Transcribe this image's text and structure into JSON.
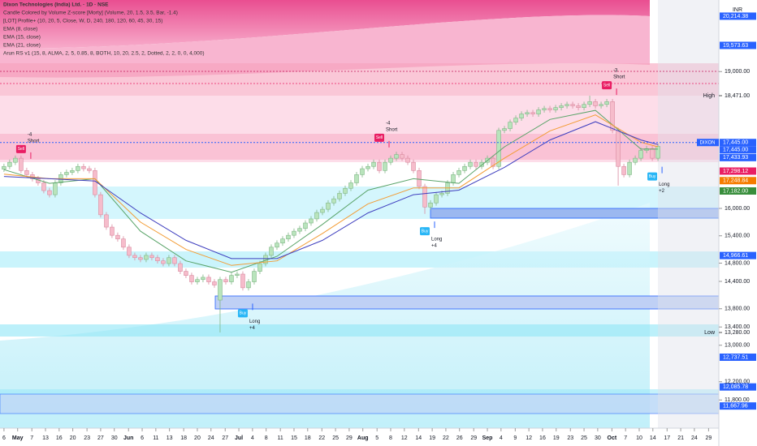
{
  "chart_data": {
    "type": "candlestick",
    "title": "Dixon Technologies (India) Ltd. · 1D · NSE",
    "legend_lines": [
      "Candle Colored by Volume Z-score [Morty] (Volume, 20, 1.5, 3.5, Bar, -1.4)",
      "[LOT] Profile+ (10, 20, 5, Close, W, D, 240, 180, 120, 60, 45, 30, 15)",
      "EMA (8, close)",
      "EMA (15, close)",
      "EMA (21, close)",
      "Arun RS v1 (15, 8, ALMA, 2, 5, 0.85, 8, BOTH, 10, 20, 2.5, 2, Dotted, 2, 2, 0, 0, 4,000)"
    ],
    "currency": "INR",
    "up_color": "#b9e4bc",
    "down_color": "#f6bccb",
    "open": [
      16860,
      16920,
      17010,
      17100,
      16830,
      16740,
      16650,
      16560,
      16390,
      16300,
      16560,
      16740,
      16790,
      16830,
      16920,
      16870,
      16830,
      16300,
      15860,
      15590,
      15410,
      15330,
      15150,
      14970,
      14920,
      14880,
      14970,
      14920,
      14850,
      14790,
      14920,
      14790,
      14620,
      14530,
      14390,
      14440,
      14490,
      14390,
      13990,
      14440,
      14390,
      14530,
      14560,
      14260,
      14390,
      14620,
      14790,
      14970,
      15150,
      15240,
      15330,
      15410,
      15500,
      15560,
      15680,
      15770,
      15910,
      15980,
      16120,
      16210,
      16330,
      16440,
      16560,
      16740,
      16870,
      16920,
      17010,
      16830,
      17010,
      17100,
      17180,
      17100,
      17010,
      16830,
      16480,
      16030,
      16120,
      16300,
      16330,
      16560,
      16740,
      16830,
      16920,
      17010,
      16920,
      17010,
      17100,
      16920,
      17710,
      17750,
      17890,
      17980,
      18070,
      18100,
      18070,
      18160,
      18190,
      18160,
      18210,
      18250,
      18280,
      18250,
      18210,
      18280,
      18340,
      18250,
      18280,
      18340,
      17710,
      16920,
      16740,
      17010,
      17100,
      17270,
      17310,
      17100
    ],
    "high": [
      16980,
      17070,
      17160,
      17160,
      16890,
      16800,
      16710,
      16620,
      16450,
      16620,
      16800,
      16850,
      16890,
      16980,
      16980,
      16930,
      16890,
      16360,
      15920,
      15650,
      15470,
      15390,
      15210,
      15030,
      14980,
      15030,
      15030,
      14980,
      14910,
      14980,
      14980,
      14850,
      14680,
      14590,
      14500,
      14550,
      14550,
      14450,
      14500,
      14500,
      14590,
      14620,
      14620,
      14450,
      14680,
      14850,
      15030,
      15210,
      15300,
      15390,
      15470,
      15560,
      15620,
      15740,
      15830,
      15970,
      16040,
      16180,
      16270,
      16390,
      16500,
      16620,
      16800,
      16930,
      16980,
      17070,
      17070,
      17070,
      17160,
      17240,
      17240,
      17160,
      17070,
      16890,
      16540,
      16180,
      16360,
      16390,
      16620,
      16800,
      16890,
      16980,
      17070,
      17070,
      17070,
      17160,
      17160,
      17770,
      17810,
      17950,
      18040,
      18130,
      18160,
      18160,
      18220,
      18250,
      18250,
      18270,
      18310,
      18340,
      18340,
      18310,
      18340,
      18471,
      18400,
      18340,
      18400,
      18400,
      17770,
      16980,
      17070,
      17160,
      17330,
      17370,
      17370,
      17420
    ],
    "low": [
      16800,
      16860,
      16950,
      16770,
      16680,
      16590,
      16500,
      16330,
      16240,
      16240,
      16500,
      16680,
      16730,
      16770,
      16810,
      16770,
      16240,
      15800,
      15530,
      15350,
      15270,
      15090,
      14910,
      14860,
      14820,
      14820,
      14860,
      14790,
      14730,
      14730,
      14730,
      14560,
      14470,
      14330,
      14330,
      14380,
      14330,
      14260,
      13280,
      14330,
      14330,
      14470,
      14200,
      14200,
      14330,
      14560,
      14730,
      14910,
      15090,
      15180,
      15270,
      15350,
      15440,
      15500,
      15620,
      15710,
      15850,
      15920,
      16060,
      16150,
      16270,
      16380,
      16500,
      16680,
      16810,
      16860,
      16770,
      16770,
      16950,
      17040,
      17040,
      16950,
      16770,
      16420,
      15880,
      15970,
      16060,
      16240,
      16270,
      16500,
      16680,
      16770,
      16860,
      16860,
      16860,
      16950,
      16860,
      16860,
      17650,
      17690,
      17830,
      17920,
      18010,
      18010,
      18010,
      18100,
      18100,
      18100,
      18150,
      18190,
      18190,
      18150,
      18150,
      18220,
      18190,
      18190,
      18220,
      17650,
      16500,
      16680,
      16680,
      16950,
      17040,
      17210,
      17040,
      17040
    ],
    "close": [
      16920,
      17010,
      17100,
      16830,
      16740,
      16650,
      16560,
      16390,
      16300,
      16560,
      16740,
      16790,
      16830,
      16920,
      16870,
      16830,
      16300,
      15860,
      15590,
      15410,
      15330,
      15150,
      14970,
      14920,
      14880,
      14970,
      14920,
      14850,
      14790,
      14920,
      14790,
      14620,
      14530,
      14390,
      14440,
      14490,
      14390,
      14320,
      14440,
      14390,
      14530,
      14560,
      14260,
      14390,
      14620,
      14790,
      14970,
      15150,
      15240,
      15330,
      15410,
      15500,
      15560,
      15680,
      15770,
      15910,
      15980,
      16120,
      16210,
      16330,
      16440,
      16560,
      16740,
      16870,
      16920,
      17010,
      16830,
      17010,
      17100,
      17180,
      17100,
      17010,
      16830,
      16480,
      16030,
      16120,
      16300,
      16330,
      16560,
      16740,
      16830,
      16920,
      17010,
      16920,
      17010,
      17100,
      16920,
      17710,
      17750,
      17890,
      17980,
      18070,
      18100,
      18070,
      18160,
      18190,
      18160,
      18210,
      18250,
      18280,
      18250,
      18210,
      18280,
      18340,
      18250,
      18280,
      18340,
      17710,
      16920,
      16740,
      17010,
      17100,
      17270,
      17310,
      17100,
      17360
    ],
    "lines_x": [
      0,
      8,
      16,
      24,
      32,
      40,
      48,
      56,
      64,
      72,
      80,
      88,
      96,
      104,
      112,
      115
    ],
    "lines": [
      {
        "name": "EMA (8, close)",
        "color": "#5aa469",
        "values": [
          16850,
          16550,
          16650,
          15500,
          14850,
          14600,
          14950,
          15650,
          16400,
          16650,
          16550,
          17350,
          17950,
          18150,
          17300,
          17300
        ]
      },
      {
        "name": "EMA (15, close)",
        "color": "#f39c34",
        "values": [
          16750,
          16650,
          16650,
          15700,
          15100,
          14750,
          14850,
          15450,
          16100,
          16450,
          16450,
          17100,
          17700,
          18050,
          17450,
          17350
        ]
      },
      {
        "name": "EMA (21, close)",
        "color": "#3f3fbf",
        "values": [
          16700,
          16650,
          16600,
          15900,
          15300,
          14900,
          14900,
          15300,
          15900,
          16300,
          16400,
          16900,
          17500,
          17900,
          17500,
          17400
        ]
      }
    ],
    "signals": [
      {
        "tag": "Sell",
        "count": "-4",
        "text": "Short",
        "x": 3,
        "y": 17300,
        "color": "#e91e63"
      },
      {
        "tag": "Sell",
        "count": "-4",
        "text": "Short",
        "x": 66,
        "y": 17550,
        "color": "#e91e63"
      },
      {
        "tag": "Sell",
        "count": "-3",
        "text": "Short",
        "x": 106,
        "y": 18700,
        "color": "#e91e63"
      },
      {
        "tag": "Buy",
        "count": "+4",
        "text": "Long",
        "x": 42,
        "y": 13700,
        "color": "#29b6f6"
      },
      {
        "tag": "Buy",
        "count": "+4",
        "text": "Long",
        "x": 74,
        "y": 15500,
        "color": "#29b6f6"
      },
      {
        "tag": "Buy",
        "count": "+2",
        "text": "Long",
        "x": 114,
        "y": 16700,
        "color": "#29b6f6"
      }
    ],
    "xlim": [
      -0.7,
      125.7
    ],
    "xticks": [
      {
        "value": 0,
        "label": "6"
      },
      {
        "value": 2.4,
        "label": "May"
      },
      {
        "value": 4.9,
        "label": "7"
      },
      {
        "value": 7.3,
        "label": "13"
      },
      {
        "value": 9.7,
        "label": "16"
      },
      {
        "value": 12.1,
        "label": "20"
      },
      {
        "value": 14.6,
        "label": "23"
      },
      {
        "value": 17,
        "label": "27"
      },
      {
        "value": 19.4,
        "label": "30"
      },
      {
        "value": 21.9,
        "label": "Jun"
      },
      {
        "value": 24.3,
        "label": "6"
      },
      {
        "value": 26.7,
        "label": "11"
      },
      {
        "value": 29.1,
        "label": "13"
      },
      {
        "value": 31.6,
        "label": "18"
      },
      {
        "value": 34,
        "label": "20"
      },
      {
        "value": 36.4,
        "label": "24"
      },
      {
        "value": 38.9,
        "label": "27"
      },
      {
        "value": 41.3,
        "label": "Jul"
      },
      {
        "value": 43.7,
        "label": "4"
      },
      {
        "value": 46.1,
        "label": "8"
      },
      {
        "value": 48.6,
        "label": "11"
      },
      {
        "value": 51,
        "label": "15"
      },
      {
        "value": 53.4,
        "label": "18"
      },
      {
        "value": 55.9,
        "label": "22"
      },
      {
        "value": 58.3,
        "label": "25"
      },
      {
        "value": 60.7,
        "label": "29"
      },
      {
        "value": 63.1,
        "label": "Aug"
      },
      {
        "value": 65.6,
        "label": "5"
      },
      {
        "value": 68,
        "label": "8"
      },
      {
        "value": 70.4,
        "label": "12"
      },
      {
        "value": 72.9,
        "label": "14"
      },
      {
        "value": 75.3,
        "label": "19"
      },
      {
        "value": 77.7,
        "label": "22"
      },
      {
        "value": 80.1,
        "label": "26"
      },
      {
        "value": 82.6,
        "label": "29"
      },
      {
        "value": 85,
        "label": "Sep"
      },
      {
        "value": 87.4,
        "label": "4"
      },
      {
        "value": 89.9,
        "label": "9"
      },
      {
        "value": 92.3,
        "label": "12"
      },
      {
        "value": 94.7,
        "label": "16"
      },
      {
        "value": 97.1,
        "label": "19"
      },
      {
        "value": 99.6,
        "label": "23"
      },
      {
        "value": 102,
        "label": "25"
      },
      {
        "value": 104.4,
        "label": "30"
      },
      {
        "value": 106.9,
        "label": "Oct"
      },
      {
        "value": 109.3,
        "label": "7"
      },
      {
        "value": 111.7,
        "label": "10"
      },
      {
        "value": 114.1,
        "label": "14"
      },
      {
        "value": 116.6,
        "label": "17"
      },
      {
        "value": 119,
        "label": "21"
      },
      {
        "value": 121.4,
        "label": "24"
      },
      {
        "value": 123.9,
        "label": "29"
      }
    ],
    "ylim": [
      11182,
      20569
    ],
    "yticks": [
      {
        "value": 19000,
        "label": "19,000.00"
      },
      {
        "value": 16000,
        "label": "16,000.00"
      },
      {
        "value": 15400,
        "label": "15,400.00"
      },
      {
        "value": 14800,
        "label": "14,800.00"
      },
      {
        "value": 14400,
        "label": "14,400.00"
      },
      {
        "value": 13800,
        "label": "13,800.00"
      },
      {
        "value": 13400,
        "label": "13,400.00"
      },
      {
        "value": 13000,
        "label": "13,000.00"
      },
      {
        "value": 12200,
        "label": "12,200.00"
      },
      {
        "value": 11800,
        "label": "11,800.00"
      }
    ],
    "price_tags": [
      {
        "value": 20214.38,
        "label": "20,214.38",
        "color": "#2962ff"
      },
      {
        "value": 19573.63,
        "label": "19,573.63",
        "color": "#2962ff"
      },
      {
        "value": 17445,
        "label": "17,445.00",
        "color": "#2962ff",
        "name": "DIXON"
      },
      {
        "value": 17445,
        "label": "17,445.00",
        "color": "#2962ff"
      },
      {
        "value": 17433.93,
        "label": "17,433.93",
        "color": "#2962ff"
      },
      {
        "value": 17298.12,
        "label": "17,298.12",
        "color": "#e91e63"
      },
      {
        "value": 17248.84,
        "label": "17,248.84",
        "color": "#f57c00"
      },
      {
        "value": 17182,
        "label": "17,182.00",
        "color": "#388e3c"
      },
      {
        "value": 14966.61,
        "label": "14,966.61",
        "color": "#2962ff"
      },
      {
        "value": 12737.51,
        "label": "12,737.51",
        "color": "#2962ff"
      },
      {
        "value": 12085.78,
        "label": "12,085.78",
        "color": "#2962ff"
      },
      {
        "value": 11667.96,
        "label": "11,667.96",
        "color": "#2962ff"
      }
    ],
    "extremes": [
      {
        "name": "High",
        "value": 18471,
        "label": "18,471.00"
      },
      {
        "name": "Low",
        "value": 13280,
        "label": "13,280.00"
      }
    ]
  }
}
